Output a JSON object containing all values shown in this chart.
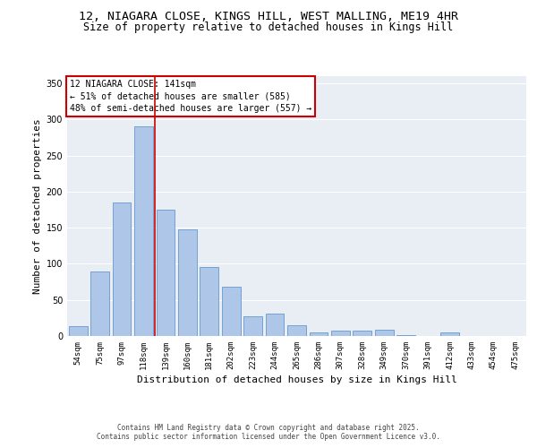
{
  "title_line1": "12, NIAGARA CLOSE, KINGS HILL, WEST MALLING, ME19 4HR",
  "title_line2": "Size of property relative to detached houses in Kings Hill",
  "xlabel": "Distribution of detached houses by size in Kings Hill",
  "ylabel": "Number of detached properties",
  "categories": [
    "54sqm",
    "75sqm",
    "97sqm",
    "118sqm",
    "139sqm",
    "160sqm",
    "181sqm",
    "202sqm",
    "223sqm",
    "244sqm",
    "265sqm",
    "286sqm",
    "307sqm",
    "328sqm",
    "349sqm",
    "370sqm",
    "391sqm",
    "412sqm",
    "433sqm",
    "454sqm",
    "475sqm"
  ],
  "values": [
    14,
    90,
    185,
    290,
    175,
    148,
    95,
    68,
    27,
    31,
    15,
    5,
    7,
    7,
    9,
    1,
    0,
    5,
    0,
    0,
    0
  ],
  "bar_color": "#aec6e8",
  "bar_edge_color": "#6699cc",
  "vline_color": "#cc0000",
  "vline_x": 3.5,
  "annotation_text": "12 NIAGARA CLOSE: 141sqm\n← 51% of detached houses are smaller (585)\n48% of semi-detached houses are larger (557) →",
  "annotation_box_color": "#ffffff",
  "annotation_box_edge": "#cc0000",
  "ylim": [
    0,
    360
  ],
  "yticks": [
    0,
    50,
    100,
    150,
    200,
    250,
    300,
    350
  ],
  "background_color": "#e8eef4",
  "footer_text": "Contains HM Land Registry data © Crown copyright and database right 2025.\nContains public sector information licensed under the Open Government Licence v3.0.",
  "title_fontsize": 9.5,
  "subtitle_fontsize": 8.5,
  "xlabel_fontsize": 8,
  "ylabel_fontsize": 8,
  "tick_fontsize": 6.5,
  "annotation_fontsize": 7,
  "footer_fontsize": 5.5
}
